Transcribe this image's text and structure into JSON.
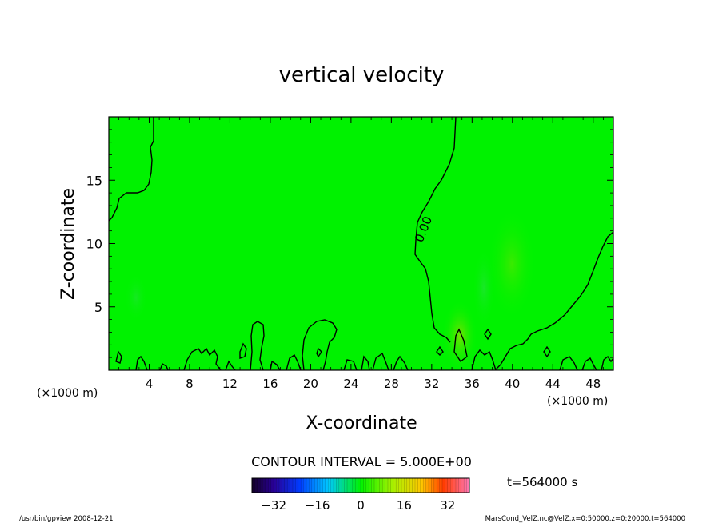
{
  "chart_data": {
    "type": "heatmap",
    "title": "vertical velocity",
    "xlabel": "X-coordinate",
    "ylabel": "Z-coordinate",
    "x_unit": "(×1000 m)",
    "x_unit_right": "(×1000 m)",
    "xlim": [
      0,
      50
    ],
    "ylim": [
      0,
      20
    ],
    "x_ticks": [
      4,
      8,
      12,
      16,
      20,
      24,
      28,
      32,
      36,
      40,
      44,
      48
    ],
    "y_ticks": [
      5,
      10,
      15
    ],
    "contour_label": "0.00",
    "contour_interval": "CONTOUR INTERVAL = 5.000E+00",
    "colorbar_ticks": [
      -32,
      -16,
      0,
      16,
      32
    ],
    "colorbar_range": [
      -40,
      40
    ],
    "time_label": "t=564000 s",
    "footer_left": "/usr/bin/gpview   2008-12-21",
    "footer_right": "MarsCond_VelZ.nc@VelZ,x=0:50000,z=0:20000,t=564000",
    "colors": {
      "field": "#00f200",
      "positive_patch": "#5cf000",
      "negative_patch": "#30f030"
    }
  }
}
